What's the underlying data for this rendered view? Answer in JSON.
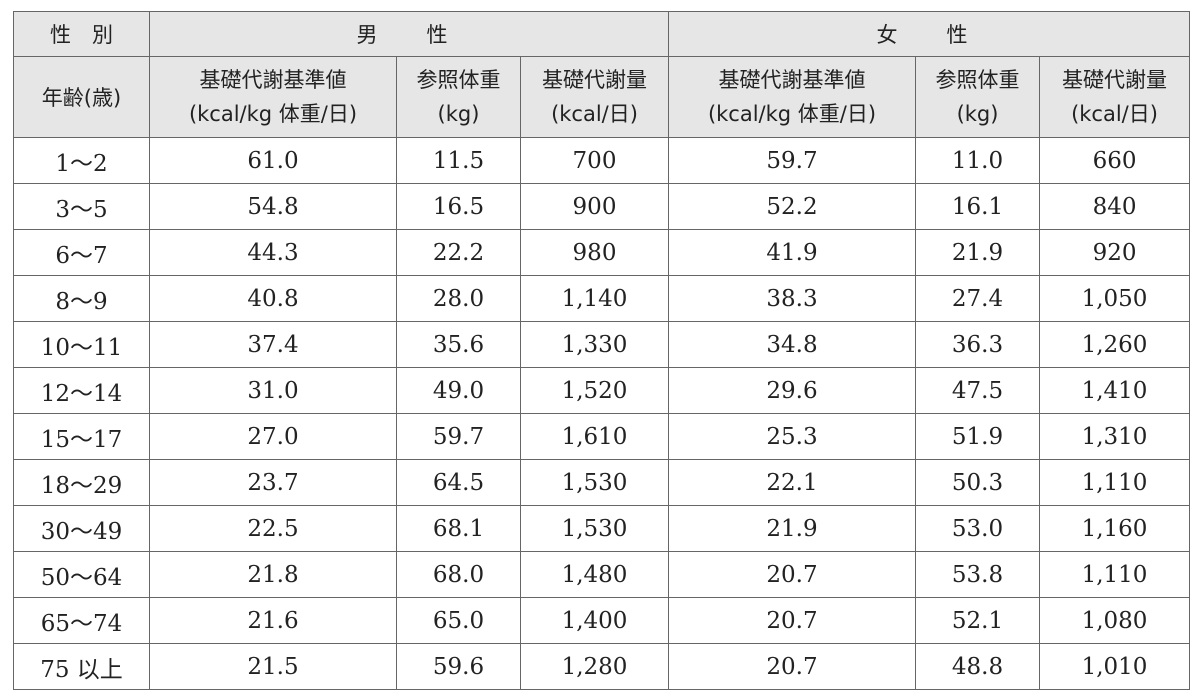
{
  "header": {
    "sex_label": "性　別",
    "male_label": "男　性",
    "female_label": "女　性",
    "age_label": "年齢(歳)",
    "columns": [
      {
        "line1": "基礎代謝基準値",
        "line2": "(kcal/kg 体重/日)"
      },
      {
        "line1": "参照体重",
        "line2": "(kg)"
      },
      {
        "line1": "基礎代謝量",
        "line2": "(kcal/日)"
      },
      {
        "line1": "基礎代謝基準値",
        "line2": "(kcal/kg 体重/日)"
      },
      {
        "line1": "参照体重",
        "line2": "(kg)"
      },
      {
        "line1": "基礎代謝量",
        "line2": "(kcal/日)"
      }
    ]
  },
  "rows": [
    {
      "age": "1～2",
      "m_std": "61.0",
      "m_wt": "11.5",
      "m_bmr": "700",
      "f_std": "59.7",
      "f_wt": "11.0",
      "f_bmr": "660"
    },
    {
      "age": "3～5",
      "m_std": "54.8",
      "m_wt": "16.5",
      "m_bmr": "900",
      "f_std": "52.2",
      "f_wt": "16.1",
      "f_bmr": "840"
    },
    {
      "age": "6～7",
      "m_std": "44.3",
      "m_wt": "22.2",
      "m_bmr": "980",
      "f_std": "41.9",
      "f_wt": "21.9",
      "f_bmr": "920"
    },
    {
      "age": "8～9",
      "m_std": "40.8",
      "m_wt": "28.0",
      "m_bmr": "1,140",
      "f_std": "38.3",
      "f_wt": "27.4",
      "f_bmr": "1,050"
    },
    {
      "age": "10～11",
      "m_std": "37.4",
      "m_wt": "35.6",
      "m_bmr": "1,330",
      "f_std": "34.8",
      "f_wt": "36.3",
      "f_bmr": "1,260"
    },
    {
      "age": "12～14",
      "m_std": "31.0",
      "m_wt": "49.0",
      "m_bmr": "1,520",
      "f_std": "29.6",
      "f_wt": "47.5",
      "f_bmr": "1,410"
    },
    {
      "age": "15～17",
      "m_std": "27.0",
      "m_wt": "59.7",
      "m_bmr": "1,610",
      "f_std": "25.3",
      "f_wt": "51.9",
      "f_bmr": "1,310"
    },
    {
      "age": "18～29",
      "m_std": "23.7",
      "m_wt": "64.5",
      "m_bmr": "1,530",
      "f_std": "22.1",
      "f_wt": "50.3",
      "f_bmr": "1,110"
    },
    {
      "age": "30～49",
      "m_std": "22.5",
      "m_wt": "68.1",
      "m_bmr": "1,530",
      "f_std": "21.9",
      "f_wt": "53.0",
      "f_bmr": "1,160"
    },
    {
      "age": "50～64",
      "m_std": "21.8",
      "m_wt": "68.0",
      "m_bmr": "1,480",
      "f_std": "20.7",
      "f_wt": "53.8",
      "f_bmr": "1,110"
    },
    {
      "age": "65～74",
      "m_std": "21.6",
      "m_wt": "65.0",
      "m_bmr": "1,400",
      "f_std": "20.7",
      "f_wt": "52.1",
      "f_bmr": "1,080"
    },
    {
      "age": "75 以上",
      "m_std": "21.5",
      "m_wt": "59.6",
      "m_bmr": "1,280",
      "f_std": "20.7",
      "f_wt": "48.8",
      "f_bmr": "1,010"
    }
  ]
}
